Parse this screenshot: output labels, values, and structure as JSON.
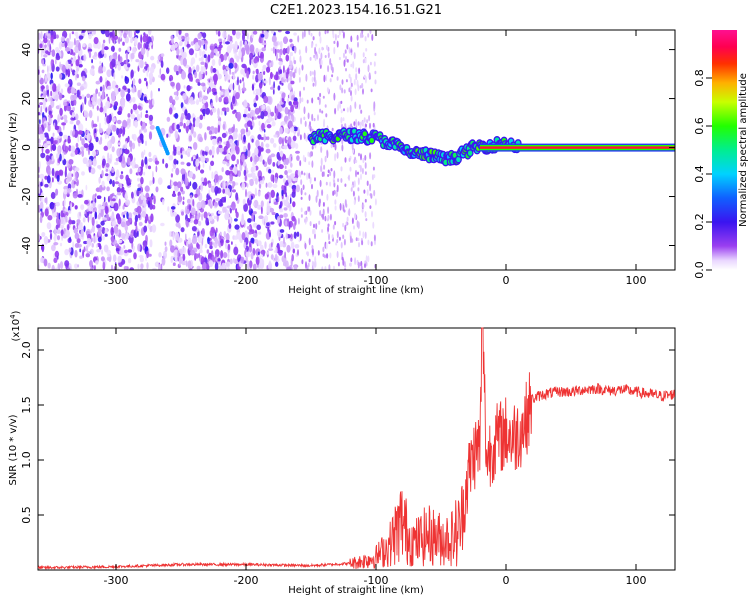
{
  "title": "C2E1.2023.154.16.51.G21",
  "chart_data": [
    {
      "type": "heatmap",
      "xlabel": "Height of straight line (km)",
      "ylabel": "Frequency (Hz)",
      "xlim": [
        -360,
        130
      ],
      "ylim": [
        -50,
        48
      ],
      "xticks": [
        -300,
        -200,
        -100,
        0,
        100
      ],
      "yticks": [
        -40,
        -20,
        0,
        20,
        40
      ],
      "colorbar": {
        "label": "Normalized spectral amplitude",
        "range": [
          0,
          1
        ],
        "ticks": [
          0.0,
          0.2,
          0.4,
          0.6,
          0.8
        ],
        "tick_labels": [
          "0.0",
          "0.2",
          "0.4",
          "0.6",
          "0.8"
        ],
        "colormap": "rainbow (white-purple-blue-cyan-green-yellow-red-magenta)"
      },
      "features": [
        {
          "description": "background noise",
          "x_range": [
            -360,
            -160
          ],
          "freq_range": [
            -50,
            48
          ],
          "amplitude": 0.1
        },
        {
          "description": "signal track",
          "points": [
            [
              -150,
              4
            ],
            [
              -120,
              5
            ],
            [
              -100,
              4
            ],
            [
              -85,
              1
            ],
            [
              -75,
              -2
            ],
            [
              -60,
              -3
            ],
            [
              -45,
              -5
            ],
            [
              -35,
              -3
            ],
            [
              -25,
              0
            ],
            [
              -10,
              1
            ],
            [
              0,
              2
            ],
            [
              10,
              0
            ],
            [
              130,
              0
            ]
          ],
          "amplitude_range": [
            0.3,
            0.8
          ]
        },
        {
          "description": "steady carrier",
          "x_range": [
            -20,
            130
          ],
          "freq": 0,
          "amplitude": 0.9
        }
      ]
    },
    {
      "type": "line",
      "xlabel": "Height of straight line (km)",
      "ylabel": "SNR (10 * v/v)",
      "y_scale_label": "(x10",
      "y_scale_exponent": "4",
      "xlim": [
        -360,
        130
      ],
      "ylim": [
        0,
        2.2
      ],
      "xticks": [
        -300,
        -200,
        -100,
        0,
        100
      ],
      "yticks": [
        0.5,
        1.0,
        1.5,
        2.0
      ],
      "ytick_labels": [
        "0.5",
        "1.0",
        "1.5",
        "2.0"
      ],
      "color": "#ee3333",
      "series": [
        {
          "x": [
            -360,
            -300,
            -250,
            -200,
            -150,
            -120,
            -110,
            -100,
            -90,
            -80,
            -75,
            -70,
            -60,
            -50,
            -40,
            -35,
            -30,
            -25,
            -20,
            -18,
            -15,
            -10,
            -5,
            0,
            5,
            10,
            15,
            20,
            25,
            30,
            40,
            50,
            60,
            70,
            80,
            90,
            100,
            110,
            120,
            130
          ],
          "values": [
            0.02,
            0.03,
            0.05,
            0.05,
            0.04,
            0.06,
            0.08,
            0.12,
            0.22,
            0.45,
            0.3,
            0.25,
            0.32,
            0.28,
            0.3,
            0.4,
            0.8,
            1.05,
            1.15,
            2.2,
            1.0,
            1.15,
            1.2,
            1.25,
            1.2,
            1.25,
            1.35,
            1.55,
            1.58,
            1.6,
            1.62,
            1.62,
            1.64,
            1.65,
            1.63,
            1.64,
            1.62,
            1.6,
            1.58,
            1.6
          ]
        }
      ]
    }
  ]
}
